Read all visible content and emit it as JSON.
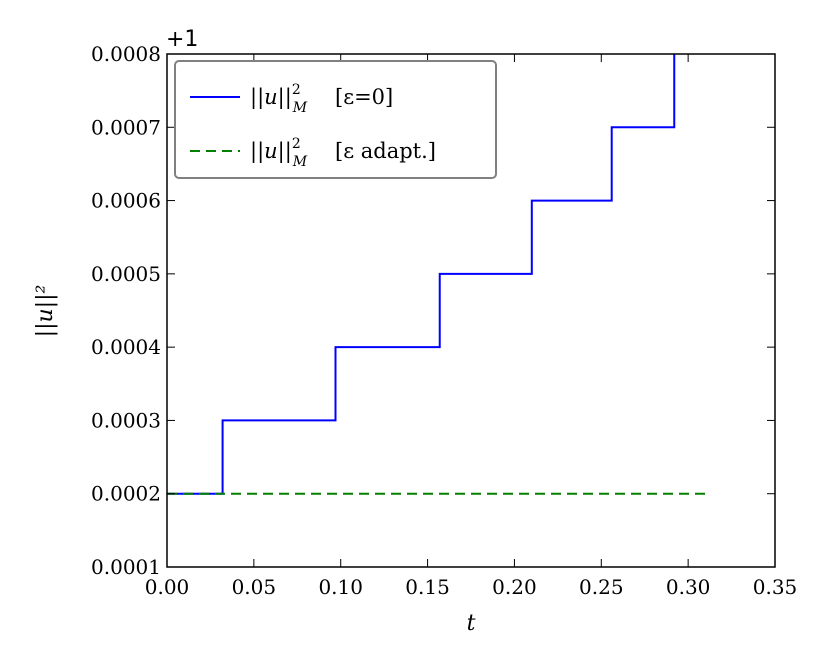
{
  "chart_data": {
    "type": "line",
    "offset_text": "+1",
    "xlabel": "t",
    "ylabel": "||u||²",
    "xlim": [
      0.0,
      0.35
    ],
    "ylim": [
      0.0001,
      0.0008
    ],
    "x_ticks": [
      0.0,
      0.05,
      0.1,
      0.15,
      0.2,
      0.25,
      0.3,
      0.35
    ],
    "x_tick_labels": [
      "0.00",
      "0.05",
      "0.10",
      "0.15",
      "0.20",
      "0.25",
      "0.30",
      "0.35"
    ],
    "y_ticks": [
      0.0001,
      0.0002,
      0.0003,
      0.0004,
      0.0005,
      0.0006,
      0.0007,
      0.0008
    ],
    "y_tick_labels": [
      "0.0001",
      "0.0002",
      "0.0003",
      "0.0004",
      "0.0005",
      "0.0006",
      "0.0007",
      "0.0008"
    ],
    "grid": false,
    "legend_position": "top-left",
    "series": [
      {
        "name": "||u||²_M [ε=0]",
        "legend_text": "[ε=0]",
        "color": "#0000ff",
        "style": "solid",
        "x": [
          0.0,
          0.032,
          0.032,
          0.097,
          0.097,
          0.157,
          0.157,
          0.21,
          0.21,
          0.256,
          0.256,
          0.292,
          0.292
        ],
        "y": [
          0.0002,
          0.0002,
          0.0003,
          0.0003,
          0.0004,
          0.0004,
          0.0005,
          0.0005,
          0.0006,
          0.0006,
          0.0007,
          0.0007,
          0.0008
        ]
      },
      {
        "name": "||u||²_M [ε adapt.]",
        "legend_text": "[ε adapt.]",
        "color": "#008000",
        "style": "dashed",
        "x": [
          0.0,
          0.311
        ],
        "y": [
          0.0002,
          0.0002
        ]
      }
    ]
  }
}
